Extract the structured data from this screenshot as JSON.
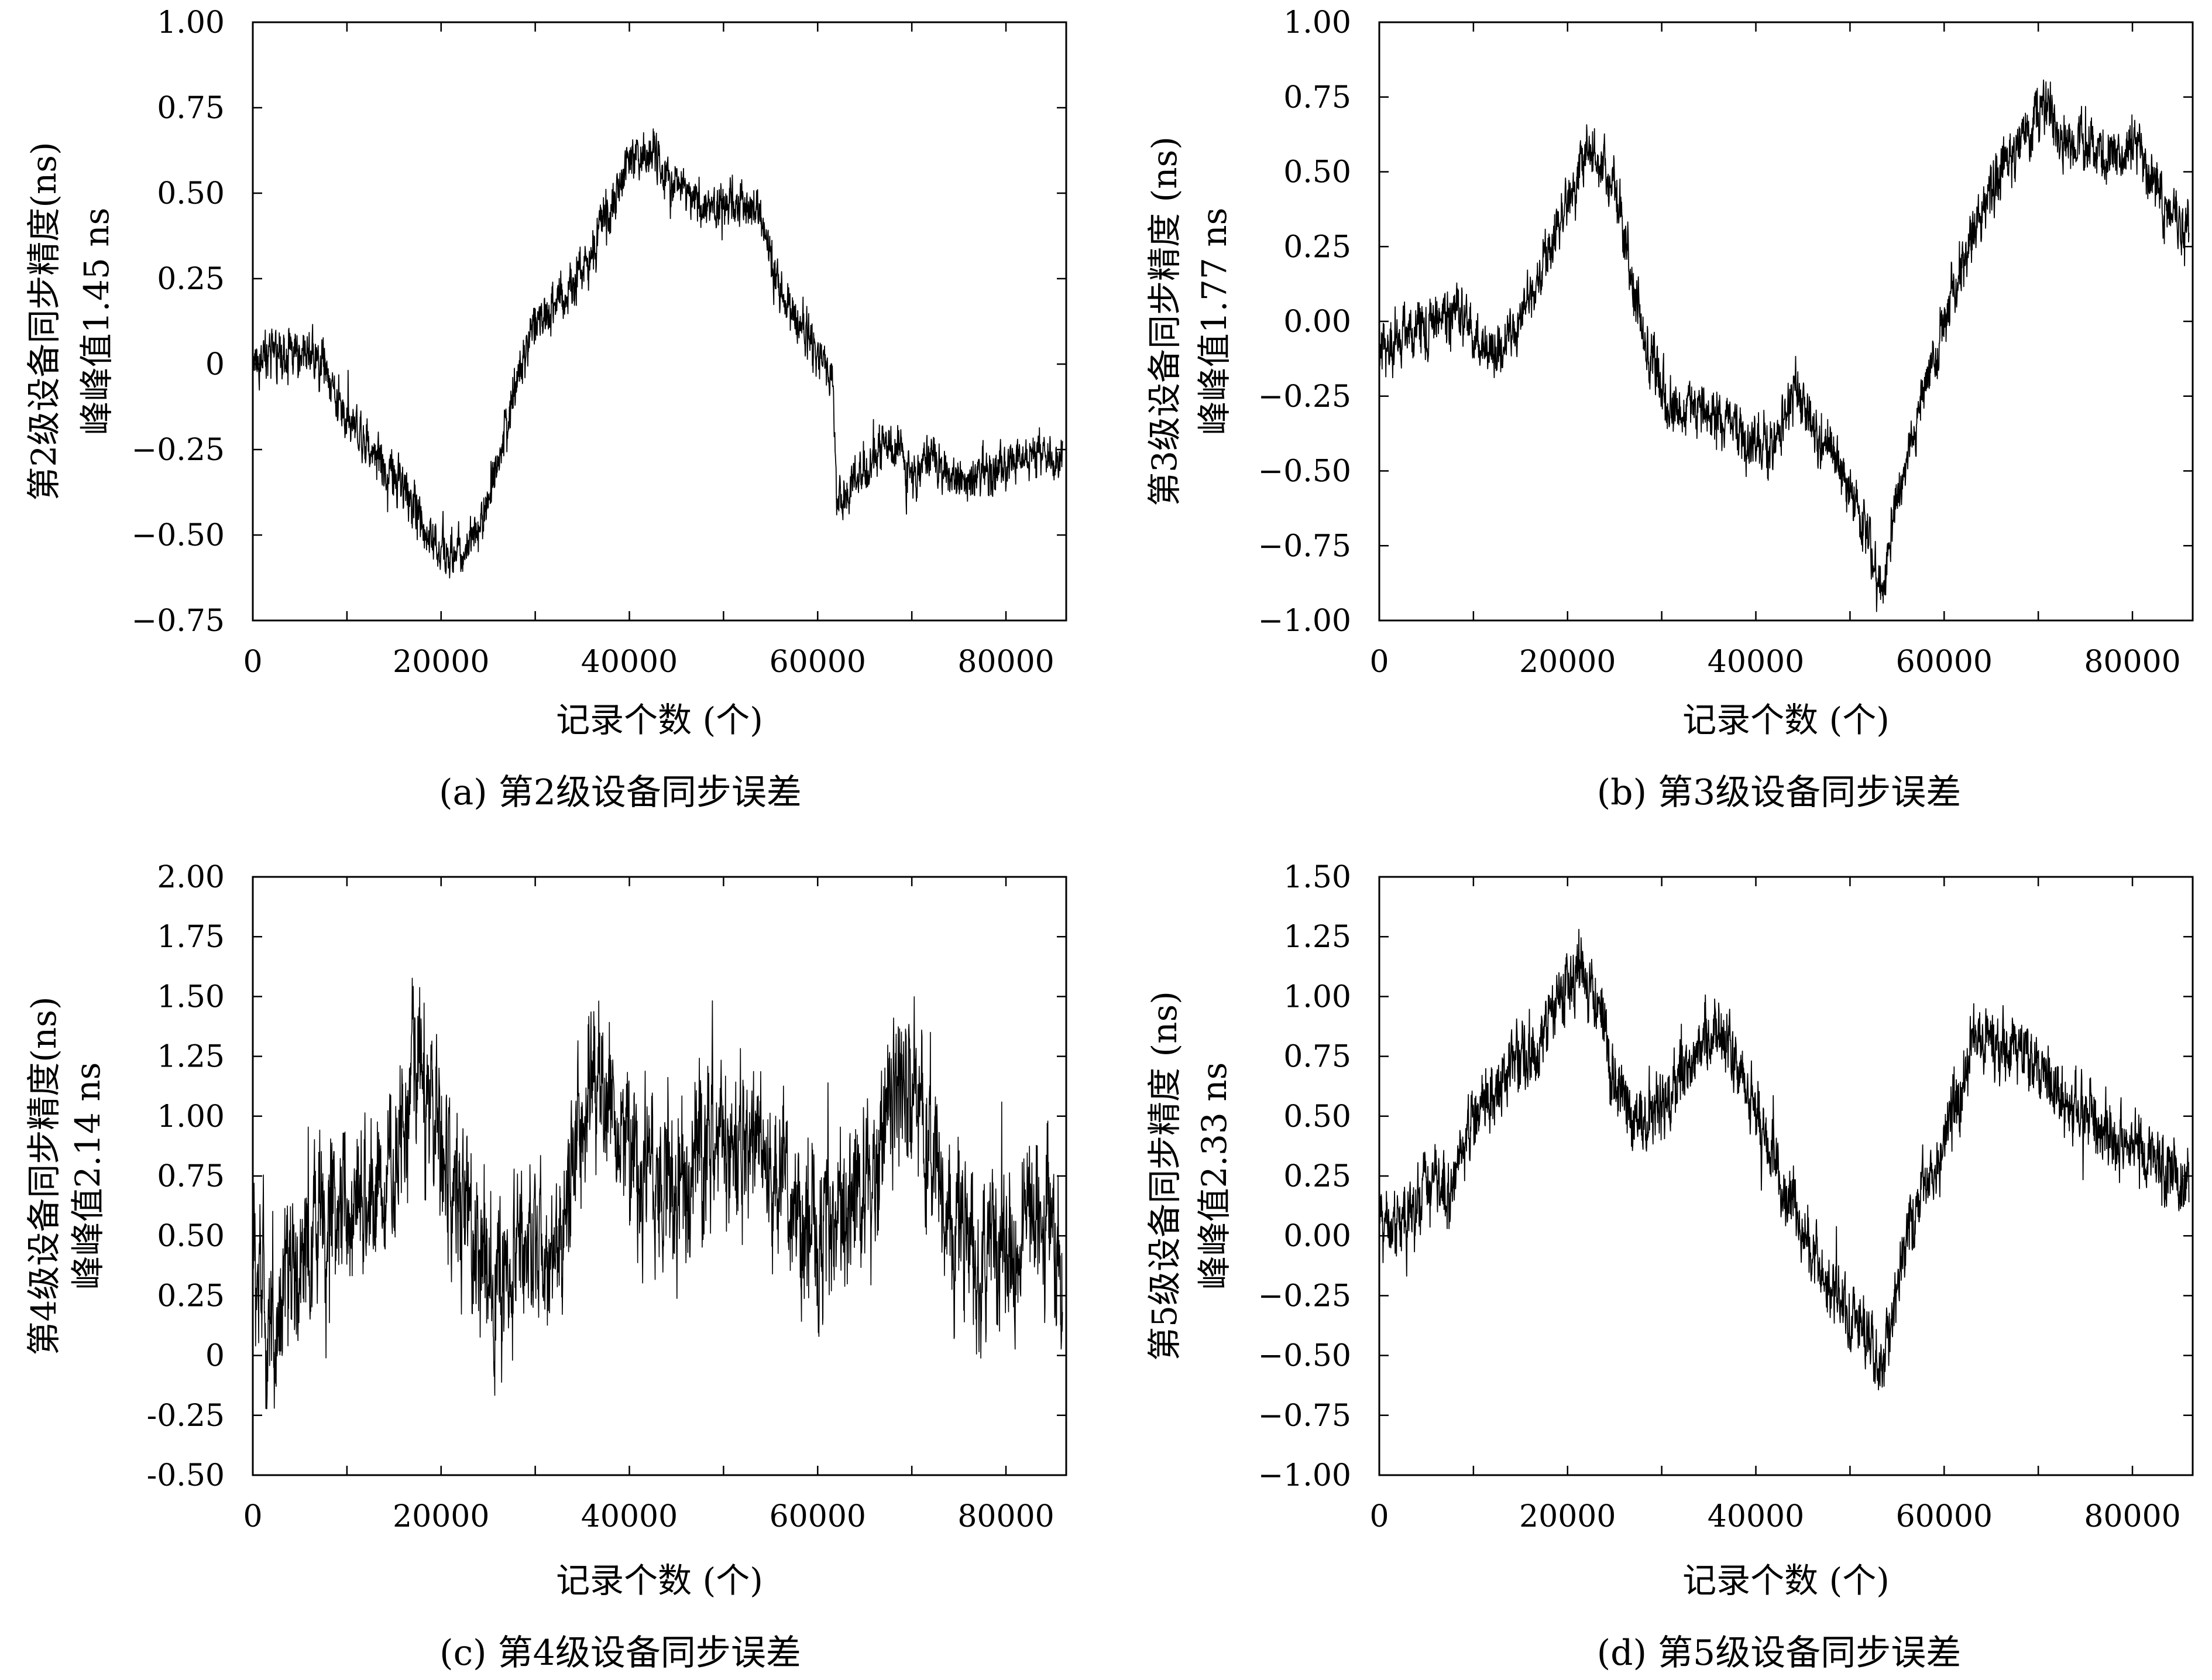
{
  "chart_data": [
    {
      "type": "line",
      "caption": "(a) 第2级设备同步误差",
      "ylabel_line1": "第2级设备同步精度(ns)",
      "ylabel_line2": "峰峰值1.45 ns",
      "xlabel": "记录个数 (个)",
      "xlim": [
        0,
        86400
      ],
      "ylim": [
        -0.75,
        1.0
      ],
      "xticks": [
        0,
        20000,
        40000,
        60000,
        80000
      ],
      "xtick_labels": [
        "0",
        "20000",
        "40000",
        "60000",
        "80000"
      ],
      "yticks": [
        -0.75,
        -0.5,
        -0.25,
        0,
        0.25,
        0.5,
        0.75,
        1.0
      ],
      "ytick_labels": [
        "−0.75",
        "−0.50",
        "−0.25",
        "0",
        "0.25",
        "0.50",
        "0.75",
        "1.00"
      ],
      "series": [
        {
          "x": [
            0,
            3000,
            6000,
            7500,
            9000,
            12000,
            15000,
            18000,
            20000,
            22000,
            24000,
            26000,
            28000,
            30000,
            32000,
            34000,
            36000,
            38000,
            40000,
            42000,
            44000,
            46000,
            48000,
            50000,
            52000,
            53500,
            54500,
            55500,
            57000,
            59000,
            61500,
            62000,
            64000,
            66000,
            68000,
            70000,
            72000,
            74000,
            76000,
            78000,
            80000,
            82000,
            84000,
            86000
          ],
          "y": [
            0.02,
            0.03,
            0.02,
            0.0,
            -0.1,
            -0.22,
            -0.33,
            -0.45,
            -0.55,
            -0.56,
            -0.48,
            -0.3,
            -0.05,
            0.12,
            0.18,
            0.22,
            0.32,
            0.45,
            0.6,
            0.62,
            0.56,
            0.52,
            0.45,
            0.47,
            0.48,
            0.45,
            0.4,
            0.25,
            0.18,
            0.08,
            -0.05,
            -0.4,
            -0.33,
            -0.28,
            -0.22,
            -0.34,
            -0.28,
            -0.32,
            -0.34,
            -0.3,
            -0.3,
            -0.26,
            -0.27,
            -0.28
          ],
          "noise": 0.06
        }
      ]
    },
    {
      "type": "line",
      "caption": "(b) 第3级设备同步误差",
      "ylabel_line1": "第3级设备同步精度 (ns)",
      "ylabel_line2": "峰峰值1.77 ns",
      "xlabel": "记录个数 (个)",
      "xlim": [
        0,
        86400
      ],
      "ylim": [
        -1.0,
        1.0
      ],
      "xticks": [
        0,
        20000,
        40000,
        60000,
        80000
      ],
      "xtick_labels": [
        "0",
        "20000",
        "40000",
        "60000",
        "80000"
      ],
      "yticks": [
        -1.0,
        -0.75,
        -0.5,
        -0.25,
        0,
        0.25,
        0.5,
        0.75,
        1.0
      ],
      "ytick_labels": [
        "−1.00",
        "−0.75",
        "−0.50",
        "−0.25",
        "0.00",
        "0.25",
        "0.50",
        "0.75",
        "1.00"
      ],
      "series": [
        {
          "x": [
            0,
            3000,
            6000,
            8000,
            10000,
            13000,
            15000,
            17000,
            20000,
            22500,
            25000,
            27000,
            29000,
            31000,
            34000,
            37000,
            40000,
            42000,
            44000,
            46000,
            48000,
            50000,
            52000,
            53500,
            55000,
            57000,
            59000,
            61000,
            63000,
            65000,
            67000,
            69000,
            70500,
            72000,
            74000,
            76000,
            78000,
            80000,
            82000,
            84000,
            86000
          ],
          "y": [
            -0.1,
            -0.05,
            0.0,
            0.05,
            -0.05,
            -0.1,
            0.0,
            0.15,
            0.4,
            0.58,
            0.45,
            0.1,
            -0.15,
            -0.3,
            -0.28,
            -0.35,
            -0.42,
            -0.4,
            -0.25,
            -0.35,
            -0.45,
            -0.55,
            -0.75,
            -0.88,
            -0.6,
            -0.35,
            -0.1,
            0.1,
            0.3,
            0.45,
            0.55,
            0.65,
            0.72,
            0.65,
            0.6,
            0.58,
            0.55,
            0.58,
            0.5,
            0.35,
            0.28
          ],
          "noise": 0.08
        }
      ]
    },
    {
      "type": "line",
      "caption": "(c) 第4级设备同步误差",
      "ylabel_line1": "第4级设备同步精度(ns)",
      "ylabel_line2": "峰峰值2.14 ns",
      "xlabel": "记录个数 (个)",
      "xlim": [
        0,
        86400
      ],
      "ylim": [
        -0.5,
        2.0
      ],
      "xticks": [
        0,
        20000,
        40000,
        60000,
        80000
      ],
      "xtick_labels": [
        "0",
        "20000",
        "40000",
        "60000",
        "80000"
      ],
      "yticks": [
        -0.5,
        -0.25,
        0,
        0.25,
        0.5,
        0.75,
        1.0,
        1.25,
        1.5,
        1.75,
        2.0
      ],
      "ytick_labels": [
        "-0.50",
        "-0.25",
        "0",
        "0.25",
        "0.50",
        "0.75",
        "1.00",
        "1.25",
        "1.50",
        "1.75",
        "2.00"
      ],
      "series": [
        {
          "x": [
            0,
            2000,
            4000,
            6000,
            9000,
            12000,
            15000,
            17000,
            19000,
            21000,
            23000,
            25000,
            28000,
            31000,
            33000,
            34000,
            36000,
            38000,
            39000,
            41000,
            44000,
            47000,
            50000,
            53000,
            56000,
            59000,
            62000,
            65000,
            68000,
            70000,
            72000,
            74000,
            77000,
            80000,
            83000,
            86000
          ],
          "y": [
            0.4,
            0.1,
            0.3,
            0.5,
            0.6,
            0.65,
            0.8,
            1.2,
            1.1,
            0.7,
            0.5,
            0.35,
            0.4,
            0.45,
            0.5,
            0.9,
            1.05,
            1.1,
            0.85,
            0.75,
            0.7,
            0.8,
            0.9,
            0.85,
            0.7,
            0.55,
            0.5,
            0.75,
            1.0,
            1.15,
            0.9,
            0.6,
            0.4,
            0.45,
            0.5,
            0.45
          ],
          "noise": 0.3
        }
      ]
    },
    {
      "type": "line",
      "caption": "(d) 第5级设备同步误差",
      "ylabel_line1": "第5级设备同步精度 (ns)",
      "ylabel_line2": "峰峰值2.33 ns",
      "xlabel": "记录个数 (个)",
      "xlim": [
        0,
        86400
      ],
      "ylim": [
        -1.0,
        1.5
      ],
      "xticks": [
        0,
        20000,
        40000,
        60000,
        80000
      ],
      "xtick_labels": [
        "0",
        "20000",
        "40000",
        "60000",
        "80000"
      ],
      "yticks": [
        -1.0,
        -0.75,
        -0.5,
        -0.25,
        0,
        0.25,
        0.5,
        0.75,
        1.0,
        1.25,
        1.5
      ],
      "ytick_labels": [
        "−1.00",
        "−0.75",
        "−0.50",
        "−0.25",
        "0.00",
        "0.25",
        "0.50",
        "0.75",
        "1.00",
        "1.25",
        "1.50"
      ],
      "series": [
        {
          "x": [
            0,
            2000,
            4000,
            6000,
            7500,
            9000,
            11000,
            14000,
            17000,
            19000,
            21000,
            23000,
            25000,
            27000,
            30000,
            33000,
            35000,
            37000,
            39000,
            41000,
            44000,
            47000,
            50000,
            52000,
            53500,
            55000,
            57000,
            59000,
            61000,
            63000,
            66000,
            69000,
            72000,
            75000,
            78000,
            81000,
            84000,
            86000
          ],
          "y": [
            0.0,
            0.05,
            0.15,
            0.25,
            0.15,
            0.4,
            0.55,
            0.7,
            0.8,
            0.95,
            1.1,
            1.0,
            0.7,
            0.45,
            0.55,
            0.7,
            0.85,
            0.8,
            0.65,
            0.4,
            0.1,
            -0.15,
            -0.35,
            -0.45,
            -0.55,
            -0.2,
            0.1,
            0.3,
            0.5,
            0.85,
            0.8,
            0.75,
            0.6,
            0.5,
            0.4,
            0.35,
            0.3,
            0.2
          ],
          "noise": 0.12
        }
      ]
    }
  ]
}
